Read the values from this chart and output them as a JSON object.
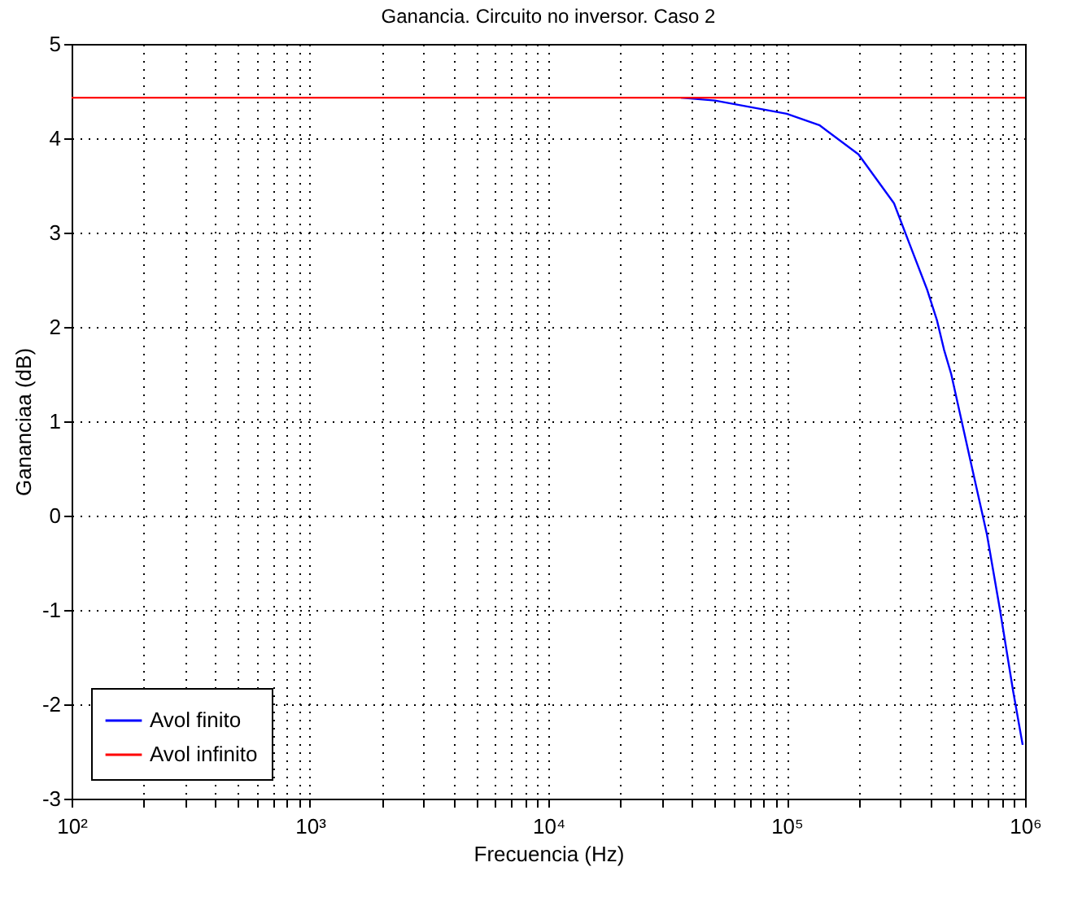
{
  "chart_data": {
    "type": "line",
    "title": "Ganancia. Circuito no inversor. Caso 2",
    "xlabel": "Frecuencia (Hz)",
    "ylabel": "Gananciaa (dB)",
    "log": "x",
    "grid": true,
    "legend": "bottom left",
    "xlim": [
      100,
      1000000
    ],
    "ylim": [
      -3,
      5
    ],
    "xticks": [
      {
        "value": 100,
        "label": "10²"
      },
      {
        "value": 200,
        "label": null
      },
      {
        "value": 300,
        "label": null
      },
      {
        "value": 400,
        "label": null
      },
      {
        "value": 500,
        "label": null
      },
      {
        "value": 600,
        "label": null
      },
      {
        "value": 700,
        "label": null
      },
      {
        "value": 800,
        "label": null
      },
      {
        "value": 900,
        "label": null
      },
      {
        "value": 1000,
        "label": "10³"
      },
      {
        "value": 2000,
        "label": null
      },
      {
        "value": 3000,
        "label": null
      },
      {
        "value": 4000,
        "label": null
      },
      {
        "value": 5000,
        "label": null
      },
      {
        "value": 6000,
        "label": null
      },
      {
        "value": 7000,
        "label": null
      },
      {
        "value": 8000,
        "label": null
      },
      {
        "value": 9000,
        "label": null
      },
      {
        "value": 10000,
        "label": "10⁴"
      },
      {
        "value": 20000,
        "label": null
      },
      {
        "value": 30000,
        "label": null
      },
      {
        "value": 40000,
        "label": null
      },
      {
        "value": 50000,
        "label": null
      },
      {
        "value": 60000,
        "label": null
      },
      {
        "value": 70000,
        "label": null
      },
      {
        "value": 80000,
        "label": null
      },
      {
        "value": 90000,
        "label": null
      },
      {
        "value": 100000,
        "label": "10⁵"
      },
      {
        "value": 200000,
        "label": null
      },
      {
        "value": 300000,
        "label": null
      },
      {
        "value": 400000,
        "label": null
      },
      {
        "value": 500000,
        "label": null
      },
      {
        "value": 600000,
        "label": null
      },
      {
        "value": 700000,
        "label": null
      },
      {
        "value": 800000,
        "label": null
      },
      {
        "value": 900000,
        "label": null
      },
      {
        "value": 1000000,
        "label": "10⁶"
      }
    ],
    "yticks": [
      -3,
      -2,
      -1,
      0,
      1,
      2,
      3,
      4,
      5
    ],
    "series": [
      {
        "name": "Avol finito",
        "color": "#0000ff",
        "x": [
          36000,
          50000,
          100000,
          137000,
          200000,
          282000,
          331000,
          389000,
          427000,
          457000,
          490000,
          589000,
          692000,
          785000,
          891000,
          977000
        ],
        "values": [
          4.43,
          4.4,
          4.26,
          4.14,
          3.83,
          3.31,
          2.85,
          2.39,
          2.07,
          1.76,
          1.5,
          0.59,
          -0.2,
          -1.0,
          -1.86,
          -2.43
        ]
      },
      {
        "name": "Avol infinito",
        "color": "#ff0000",
        "x": [
          100,
          1000000
        ],
        "values": [
          4.43,
          4.43
        ]
      }
    ]
  }
}
